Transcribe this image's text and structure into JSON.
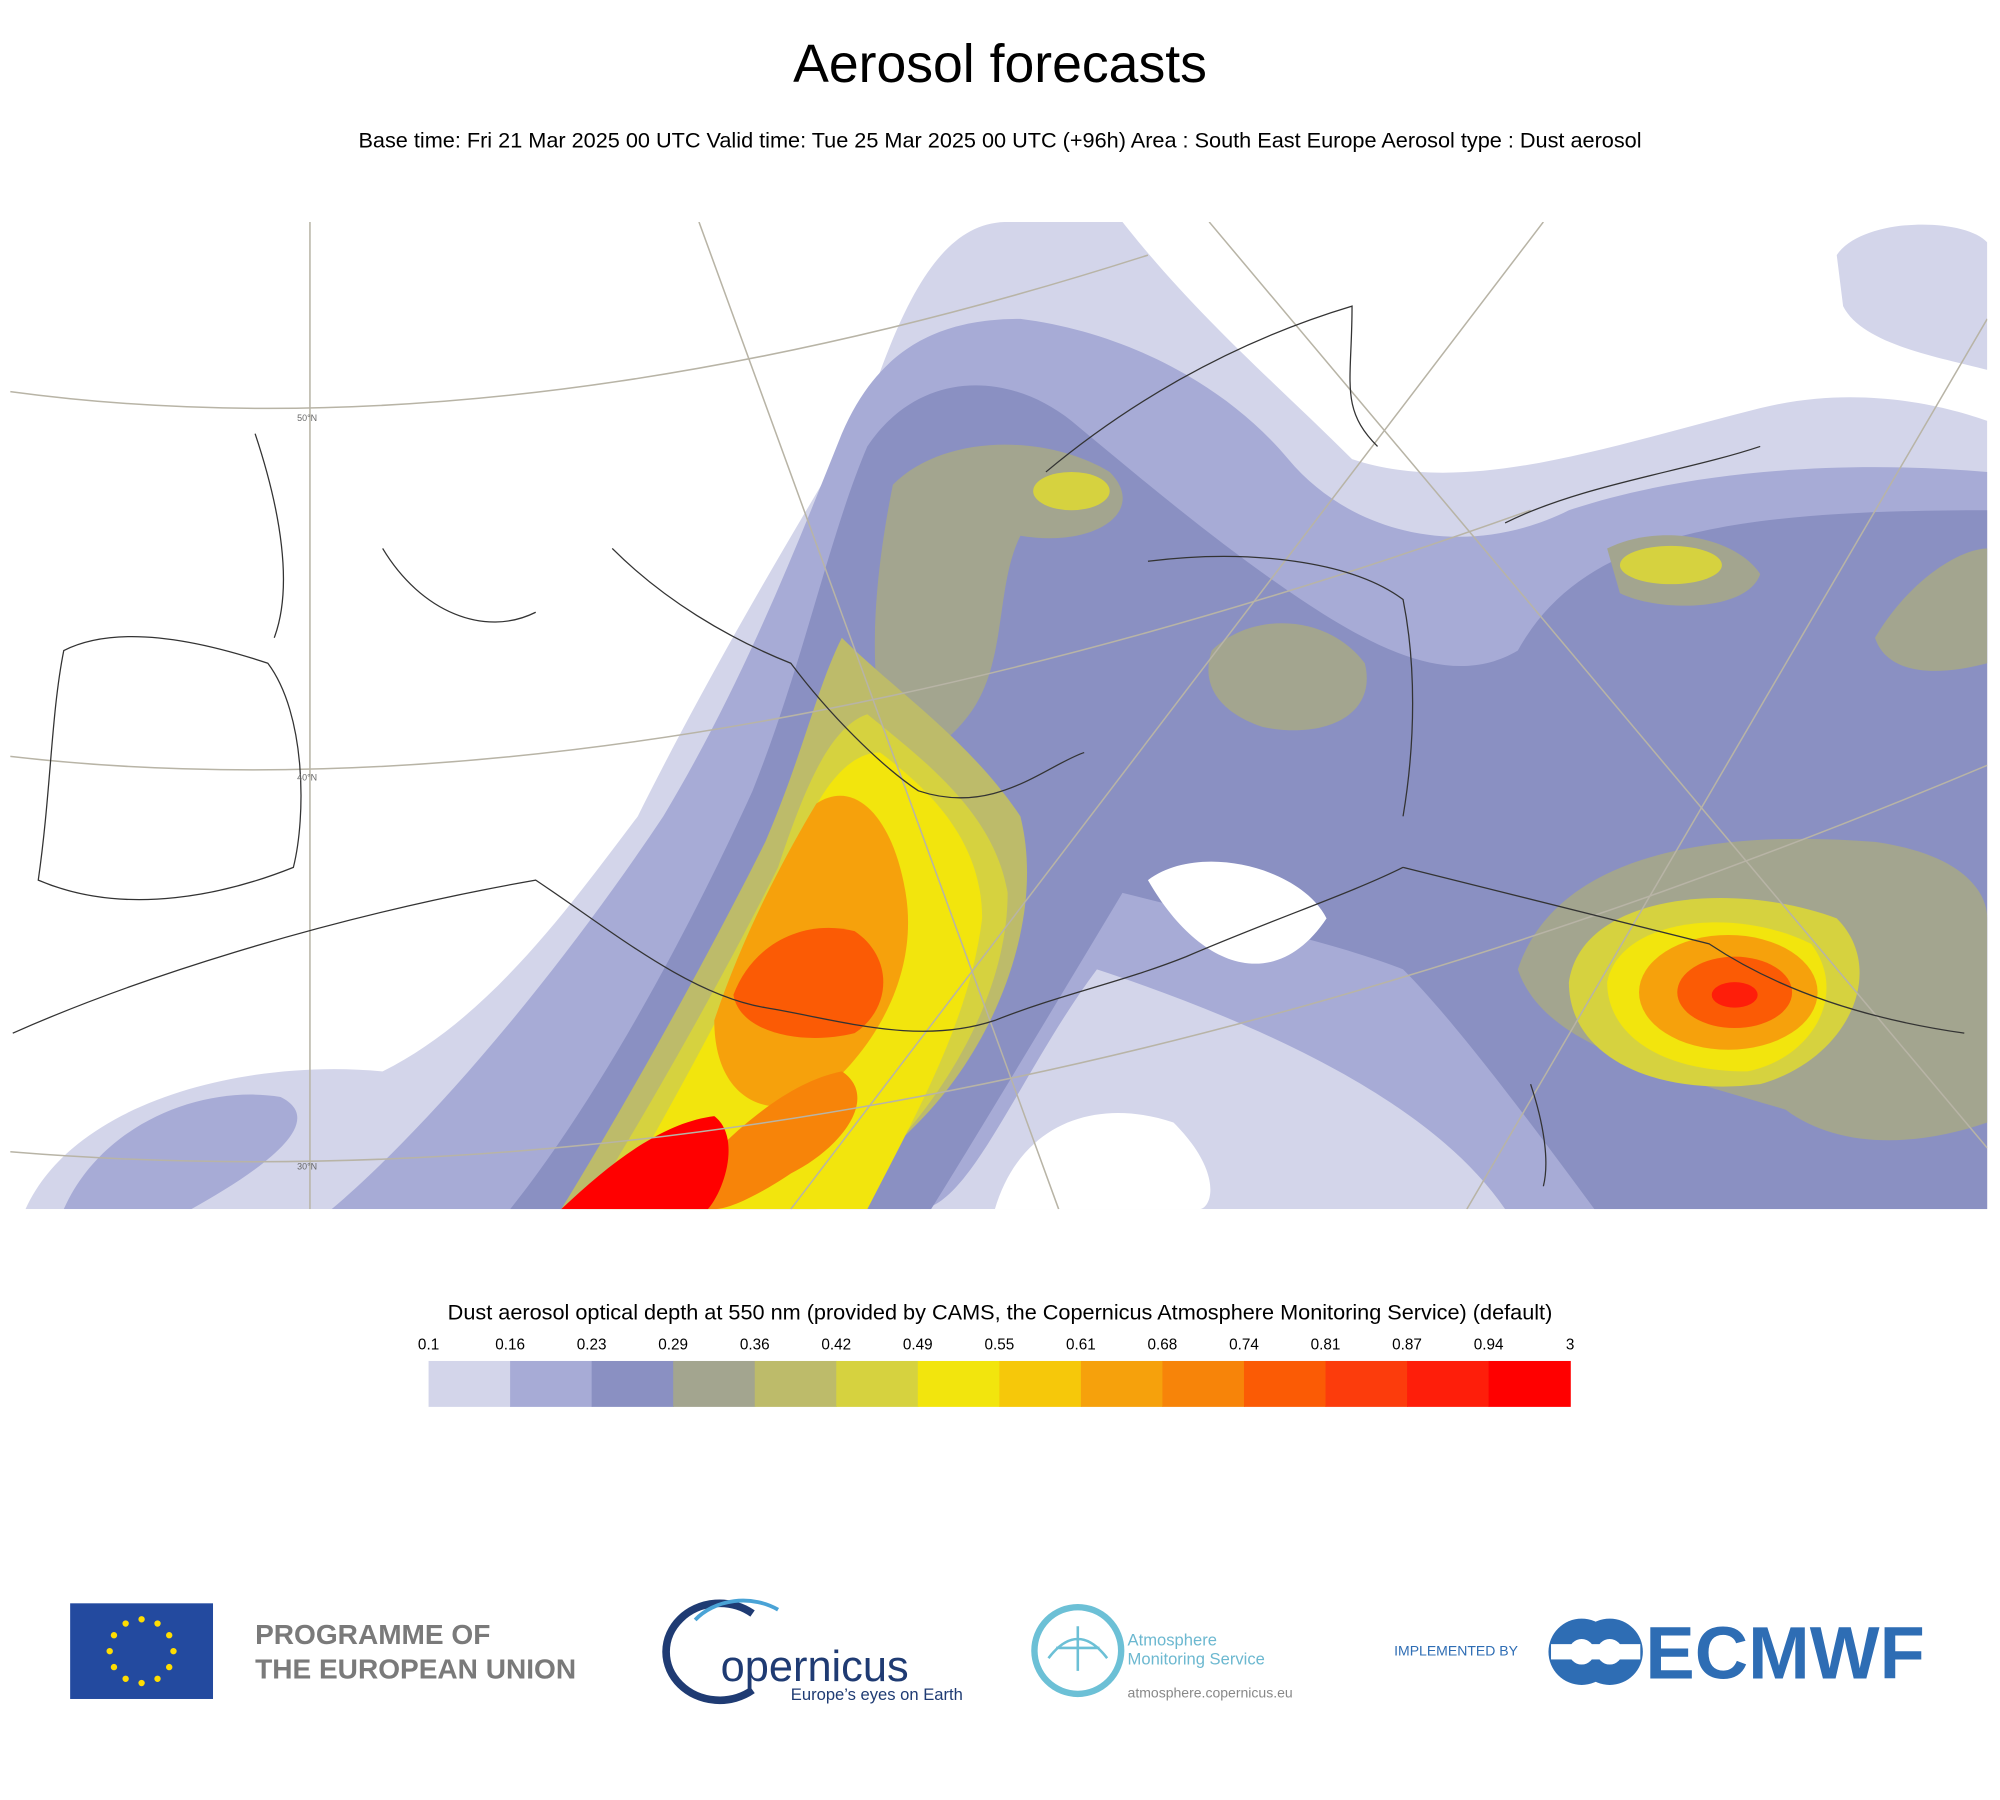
{
  "header": {
    "title": "Aerosol forecasts",
    "subtitle": "Base time: Fri 21 Mar 2025 00 UTC Valid time: Tue 25 Mar 2025 00 UTC (+96h) Area : South East Europe Aerosol type : Dust aerosol"
  },
  "map": {
    "latitude_labels": [
      "50°N",
      "40°N",
      "30°N"
    ]
  },
  "legend": {
    "title": "Dust aerosol optical depth at 550 nm (provided by CAMS, the Copernicus Atmosphere Monitoring Service) (default)",
    "ticks": [
      0.1,
      0.16,
      0.23,
      0.29,
      0.36,
      0.42,
      0.49,
      0.55,
      0.61,
      0.68,
      0.74,
      0.81,
      0.87,
      0.94,
      3
    ],
    "colors": [
      "#d3d5ea",
      "#a7abd6",
      "#8a90c2",
      "#a3a58f",
      "#bdbb6a",
      "#d6d23f",
      "#f2e50d",
      "#f6c80a",
      "#f6a10c",
      "#f78409",
      "#fb5b05",
      "#fc3c0c",
      "#fe1e0a",
      "#ff0000"
    ]
  },
  "footer": {
    "eu": [
      "PROGRAMME OF",
      "THE EUROPEAN UNION"
    ],
    "copernicus": {
      "wordmark": "opernicus",
      "tagline": "Europe’s eyes on Earth"
    },
    "cams": {
      "name": [
        "Atmosphere",
        "Monitoring Service"
      ],
      "url": "atmosphere.copernicus.eu"
    },
    "ecmwf": {
      "prefix": "IMPLEMENTED BY",
      "name": "ECMWF"
    }
  }
}
